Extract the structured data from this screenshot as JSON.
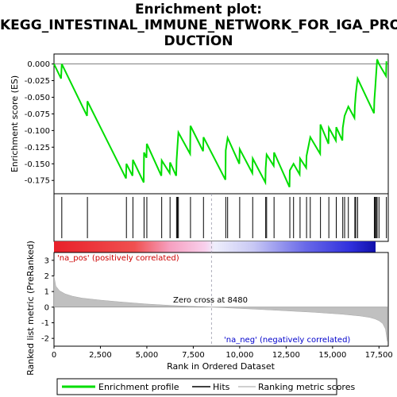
{
  "title_line1": "Enrichment plot:",
  "title_line2": "KEGG_INTESTINAL_IMMUNE_NETWORK_FOR_IGA_PRO",
  "title_line3": "DUCTION",
  "legend": {
    "enrichment": "Enrichment profile",
    "hits": "Hits",
    "ranking": "Ranking metric scores"
  },
  "colors": {
    "profile": "#00dd00",
    "hits": "#000000",
    "ranking": "#c0c0c0",
    "pos_label": "#cc0000",
    "neg_label": "#0000cc"
  },
  "chart_data": [
    {
      "type": "line",
      "ylabel": "Enrichment score (ES)",
      "xlim": [
        0,
        18000
      ],
      "ylim": [
        -0.195,
        0.015
      ],
      "yticks": [
        "0.000",
        "-0.025",
        "-0.050",
        "-0.075",
        "-0.100",
        "-0.125",
        "-0.150",
        "-0.175"
      ],
      "ytick_values": [
        0,
        -0.025,
        -0.05,
        -0.075,
        -0.1,
        -0.125,
        -0.15,
        -0.175
      ],
      "grid": false,
      "hits": [
        420,
        1800,
        3900,
        4250,
        4850,
        5000,
        5800,
        6250,
        6600,
        6650,
        6700,
        7350,
        8050,
        9250,
        9350,
        10000,
        10700,
        11400,
        11450,
        11850,
        12700,
        12900,
        13250,
        13600,
        13800,
        14350,
        14800,
        15200,
        15550,
        15650,
        15850,
        16200,
        16250,
        16350,
        17250,
        17300,
        17350,
        17400,
        17500,
        17900
      ],
      "series": [
        {
          "x": [
            0,
            380,
            420,
            1780,
            1800,
            3880,
            3900,
            4230,
            4250,
            4830,
            4850,
            4980,
            5000,
            5780,
            5800,
            6230,
            6250,
            6580,
            6600,
            6650,
            6700,
            7330,
            7350,
            8030,
            8050,
            9230,
            9250,
            9350,
            9980,
            10000,
            10680,
            10700,
            11380,
            11400,
            11450,
            11830,
            11850,
            12680,
            12700,
            12900,
            13230,
            13250,
            13580,
            13600,
            13800,
            14330,
            14350,
            14780,
            14800,
            15180,
            15200,
            15530,
            15550,
            15650,
            15850,
            16180,
            16200,
            16250,
            16350,
            17230,
            17250,
            17300,
            17350,
            17400,
            17500,
            17880,
            17900
          ],
          "y": [
            0.0,
            -0.022,
            0.0,
            -0.078,
            -0.056,
            -0.172,
            -0.15,
            -0.168,
            -0.144,
            -0.178,
            -0.133,
            -0.141,
            -0.12,
            -0.168,
            -0.145,
            -0.164,
            -0.148,
            -0.168,
            -0.145,
            -0.124,
            -0.103,
            -0.135,
            -0.093,
            -0.131,
            -0.11,
            -0.174,
            -0.13,
            -0.111,
            -0.15,
            -0.128,
            -0.164,
            -0.142,
            -0.178,
            -0.157,
            -0.136,
            -0.153,
            -0.133,
            -0.185,
            -0.16,
            -0.15,
            -0.166,
            -0.142,
            -0.156,
            -0.138,
            -0.11,
            -0.135,
            -0.091,
            -0.12,
            -0.096,
            -0.115,
            -0.095,
            -0.115,
            -0.096,
            -0.078,
            -0.064,
            -0.081,
            -0.064,
            -0.045,
            -0.022,
            -0.074,
            -0.054,
            -0.036,
            -0.014,
            0.007,
            0.0,
            -0.018,
            0.004
          ]
        }
      ]
    },
    {
      "type": "area",
      "xlabel": "Rank in Ordered Dataset",
      "ylabel": "Ranked list metric (PreRanked)",
      "xlim": [
        0,
        18000
      ],
      "ylim": [
        -2.5,
        3.5
      ],
      "xticks": [
        "0",
        "2,500",
        "5,000",
        "7,500",
        "10,000",
        "12,500",
        "15,000",
        "17,500"
      ],
      "xtick_values": [
        0,
        2500,
        5000,
        7500,
        10000,
        12500,
        15000,
        17500
      ],
      "yticks": [
        "3",
        "2",
        "1",
        "0",
        "-1",
        "-2"
      ],
      "ytick_values": [
        3,
        2,
        1,
        0,
        -1,
        -2
      ],
      "x": [
        0,
        100,
        300,
        600,
        1000,
        1500,
        2500,
        3500,
        5000,
        6500,
        8480,
        10000,
        12000,
        14000,
        15500,
        16500,
        17000,
        17300,
        17500,
        17700,
        17850,
        17950
      ],
      "values": [
        2.0,
        1.35,
        1.05,
        0.85,
        0.7,
        0.58,
        0.45,
        0.34,
        0.2,
        0.1,
        0.0,
        -0.08,
        -0.2,
        -0.33,
        -0.45,
        -0.57,
        -0.66,
        -0.76,
        -0.87,
        -1.05,
        -1.4,
        -2.2
      ],
      "annotations": {
        "pos": "'na_pos' (positively correlated)",
        "neg": "'na_neg' (negatively correlated)",
        "zero_cross": "Zero cross at 8480"
      },
      "zero_cross": 8480
    }
  ]
}
